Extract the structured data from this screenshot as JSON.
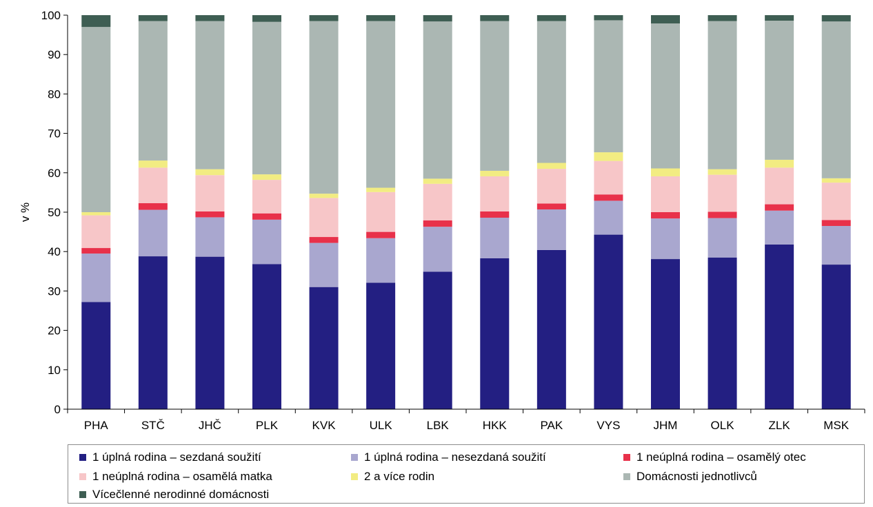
{
  "chart_data": {
    "type": "bar",
    "stacked": true,
    "title": "",
    "xlabel": "",
    "ylabel": "v %",
    "ylim": [
      0,
      100
    ],
    "yticks": [
      0,
      10,
      20,
      30,
      40,
      50,
      60,
      70,
      80,
      90,
      100
    ],
    "grid": false,
    "legend_position": "bottom",
    "categories": [
      "PHA",
      "STČ",
      "JHČ",
      "PLK",
      "KVK",
      "ULK",
      "LBK",
      "HKK",
      "PAK",
      "VYS",
      "JHM",
      "OLK",
      "ZLK",
      "MSK"
    ],
    "series": [
      {
        "name": "1 úplná rodina – sezdaná soužití",
        "color": "#231f82",
        "values": [
          27.2,
          38.8,
          38.7,
          36.8,
          31.0,
          32.1,
          34.9,
          38.3,
          40.4,
          44.3,
          38.1,
          38.5,
          41.8,
          36.7
        ]
      },
      {
        "name": "1 úplná rodina – nesezdaná soužití",
        "color": "#a9a7cf",
        "values": [
          12.3,
          11.8,
          10.0,
          11.3,
          11.2,
          11.3,
          11.4,
          10.3,
          10.3,
          8.6,
          10.3,
          10.0,
          8.6,
          9.8
        ]
      },
      {
        "name": "1 neúplná rodina – osamělý otec",
        "color": "#e8314a",
        "values": [
          1.4,
          1.7,
          1.5,
          1.6,
          1.5,
          1.6,
          1.6,
          1.6,
          1.5,
          1.6,
          1.6,
          1.6,
          1.6,
          1.5
        ]
      },
      {
        "name": "1 neúplná rodina – osamělá matka",
        "color": "#f7c6c8",
        "values": [
          8.3,
          9.0,
          9.2,
          8.5,
          9.9,
          10.1,
          9.3,
          8.9,
          8.8,
          8.5,
          9.1,
          9.4,
          9.3,
          9.5
        ]
      },
      {
        "name": "2 a více rodin",
        "color": "#f2ec82",
        "values": [
          0.8,
          1.8,
          1.5,
          1.4,
          1.1,
          1.1,
          1.3,
          1.4,
          1.5,
          2.2,
          2.0,
          1.4,
          2.0,
          1.1
        ]
      },
      {
        "name": "Domácnosti jednotlivců",
        "color": "#abb7b3",
        "values": [
          47.0,
          35.4,
          37.6,
          38.7,
          43.8,
          42.3,
          39.9,
          38.0,
          36.0,
          33.5,
          36.8,
          37.6,
          35.3,
          39.8
        ]
      },
      {
        "name": "Vícečlenné nerodinné domácnosti",
        "color": "#3e5e53",
        "values": [
          3.0,
          1.5,
          1.5,
          1.7,
          1.5,
          1.5,
          1.6,
          1.5,
          1.5,
          1.3,
          2.1,
          1.5,
          1.4,
          1.6
        ]
      }
    ]
  }
}
